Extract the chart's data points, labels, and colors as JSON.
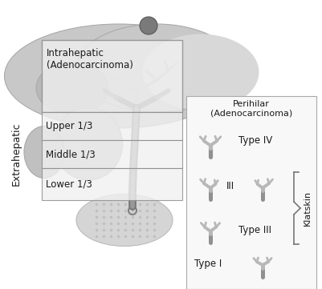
{
  "bg_color": "#ffffff",
  "text_color": "#1a1a1a",
  "liver_main_color": "#c8c8c8",
  "liver_edge": "#aaaaaa",
  "organ_color": "#d0d0d0",
  "organ_edge": "#aaaaaa",
  "duct_color_dark": "#808080",
  "duct_color_light": "#a0a0a0",
  "box_fill": "#f0f0f0",
  "box_edge": "#888888",
  "branch_fill": "#b8b8b8",
  "branch_edge": "#909090",
  "klatskin_bracket": "#888888",
  "label_intrahepatic": "Intrahepatic\n(Adenocarcinoma)",
  "label_extrahepatic": "Extrahepatic",
  "label_upper": "Upper 1/3",
  "label_middle": "Middle 1/3",
  "label_lower": "Lower 1/3",
  "label_perihilar": "Perihilar\n(Adenocarcinoma)",
  "label_klatskin": "Klatskin",
  "label_type_iv": "Type IV",
  "label_type_iii_label": "III",
  "label_type_iii": "Type III",
  "label_type_i": "Type I"
}
